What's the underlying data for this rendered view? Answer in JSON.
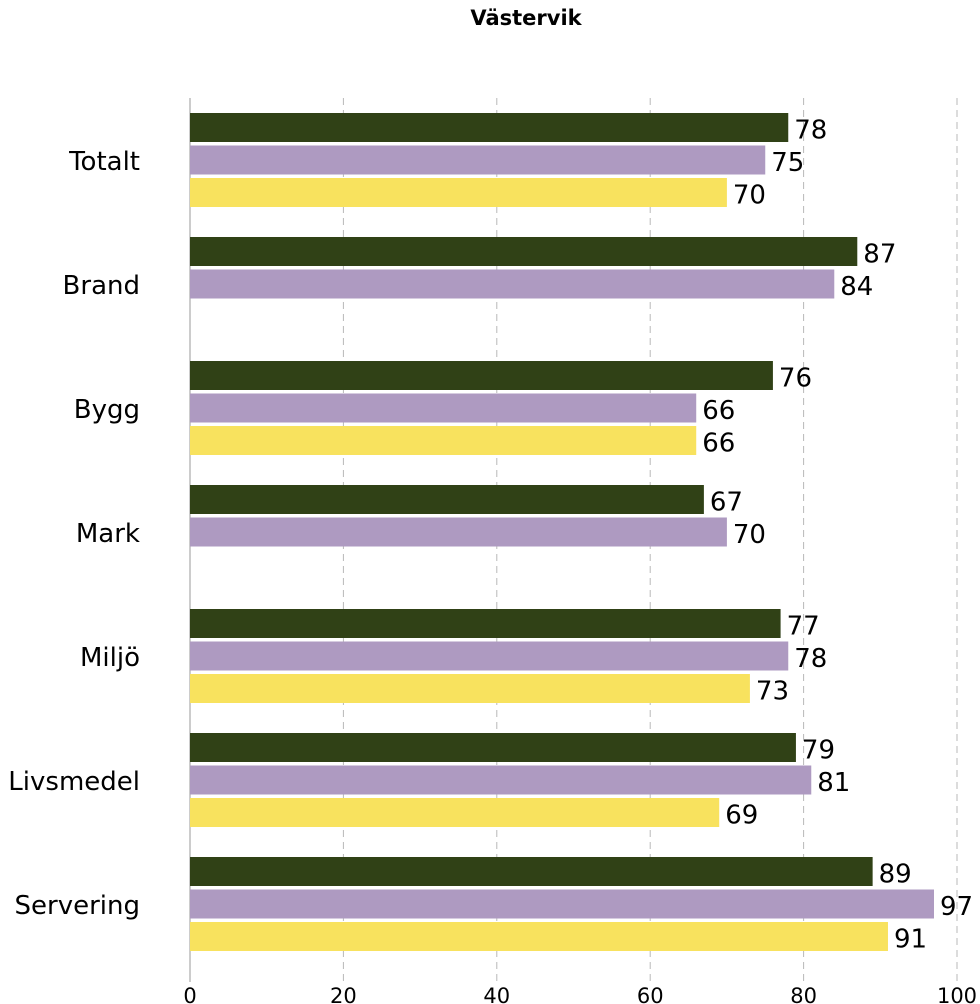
{
  "chart_data": {
    "type": "bar",
    "orientation": "horizontal",
    "title": "Västervik",
    "xlabel": "",
    "ylabel": "",
    "xlim": [
      0,
      100
    ],
    "x_ticks": [
      "0",
      "20",
      "40",
      "60",
      "80",
      "100"
    ],
    "grid": "vertical dashed",
    "legend": "none",
    "categories": [
      "Totalt",
      "Brand",
      "Bygg",
      "Mark",
      "Miljö",
      "Livsmedel",
      "Servering"
    ],
    "series": [
      {
        "color": "#304116",
        "values": [
          78,
          87,
          76,
          67,
          77,
          79,
          89
        ]
      },
      {
        "color": "#ae9ac1",
        "values": [
          75,
          84,
          66,
          70,
          78,
          81,
          97
        ]
      },
      {
        "color": "#f8e25e",
        "values": [
          70,
          null,
          66,
          null,
          73,
          69,
          91
        ]
      }
    ]
  }
}
